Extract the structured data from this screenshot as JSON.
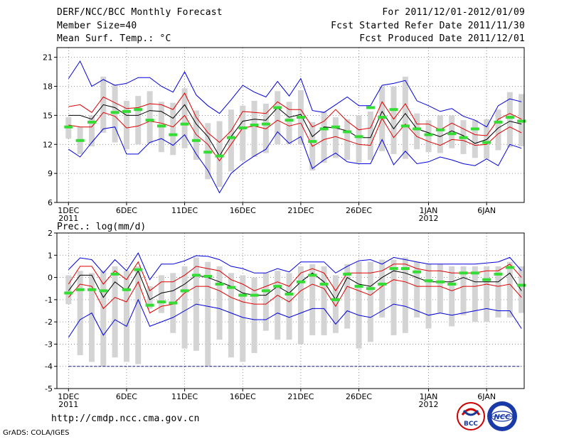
{
  "header": {
    "title": "DERF/NCC/BCC Monthly Forecast",
    "member_size": "Member Size=40",
    "temp_label": "Mean Surf. Temp.: °C",
    "forecast_for": "For 2011/12/01-2012/01/09",
    "started": "Fcst Started Refer Date 2011/11/30",
    "produced": "Fcst Produced Date 2011/12/01"
  },
  "footer": {
    "url": "http://cmdp.ncc.cma.gov.cn",
    "credit": "GrADS: COLA/IGES",
    "logo_bcc": "BCC",
    "logo_ncc": "NCC"
  },
  "colors": {
    "envelope": "#0000dd",
    "inner": "#dd0000",
    "mean": "#000000",
    "obs": "#33dd33",
    "bar": "#d4d4d4",
    "grid": "#777777"
  },
  "chart_data": [
    {
      "type": "line",
      "title": "Mean Surf. Temp.: °C",
      "ylabel": "°C",
      "ylim": [
        6,
        22
      ],
      "yticks": [
        6,
        9,
        12,
        15,
        18,
        21
      ],
      "x_ticks": [
        {
          "label": "1DEC",
          "sub": "2011",
          "day": 0
        },
        {
          "label": "6DEC",
          "sub": "",
          "day": 5
        },
        {
          "label": "11DEC",
          "sub": "",
          "day": 10
        },
        {
          "label": "16DEC",
          "sub": "",
          "day": 15
        },
        {
          "label": "21DEC",
          "sub": "",
          "day": 20
        },
        {
          "label": "26DEC",
          "sub": "",
          "day": 25
        },
        {
          "label": "1JAN",
          "sub": "2012",
          "day": 31
        },
        {
          "label": "6JAN",
          "sub": "",
          "day": 36
        }
      ],
      "days": 40,
      "series": [
        {
          "name": "max",
          "values": [
            18.8,
            20.6,
            18.0,
            18.7,
            18.1,
            18.3,
            18.9,
            18.9,
            18.0,
            17.4,
            19.5,
            17.1,
            16.0,
            15.2,
            16.6,
            18.1,
            17.4,
            16.9,
            18.5,
            17.0,
            18.8,
            15.5,
            15.3,
            16.1,
            16.9,
            16.0,
            16.0,
            18.1,
            18.3,
            18.6,
            16.5,
            16.0,
            15.4,
            15.7,
            14.9,
            14.5,
            13.8,
            16.0,
            16.7,
            16.4
          ]
        },
        {
          "name": "upper",
          "values": [
            15.9,
            16.1,
            15.3,
            16.9,
            16.3,
            15.7,
            15.8,
            16.2,
            16.1,
            15.6,
            17.3,
            14.8,
            13.2,
            12.2,
            13.4,
            15.4,
            15.3,
            15.2,
            16.4,
            15.6,
            15.6,
            13.8,
            14.4,
            15.6,
            14.4,
            13.5,
            13.7,
            16.4,
            14.6,
            16.2,
            14.1,
            14.1,
            13.5,
            14.2,
            13.6,
            13.0,
            12.9,
            14.6,
            15.2,
            14.6
          ]
        },
        {
          "name": "mean",
          "values": [
            15.0,
            15.0,
            14.6,
            16.1,
            15.8,
            15.0,
            15.0,
            15.5,
            15.4,
            14.7,
            16.1,
            14.1,
            12.8,
            10.8,
            12.8,
            14.4,
            14.6,
            14.5,
            15.8,
            14.8,
            15.1,
            12.8,
            13.8,
            13.7,
            13.4,
            12.7,
            12.7,
            15.4,
            13.6,
            15.2,
            13.6,
            13.2,
            12.8,
            13.4,
            12.9,
            12.1,
            12.5,
            13.7,
            14.4,
            14.1
          ]
        },
        {
          "name": "lower",
          "values": [
            14.0,
            13.8,
            13.8,
            15.3,
            14.9,
            13.7,
            13.9,
            14.4,
            14.2,
            13.8,
            15.0,
            13.0,
            12.0,
            10.3,
            12.0,
            13.7,
            13.9,
            13.6,
            14.5,
            13.9,
            14.2,
            11.8,
            12.5,
            12.8,
            12.4,
            12.0,
            11.9,
            14.7,
            12.7,
            14.1,
            12.8,
            12.3,
            11.9,
            12.5,
            12.4,
            11.9,
            12.0,
            13.1,
            13.8,
            13.2
          ]
        },
        {
          "name": "min",
          "values": [
            11.5,
            10.7,
            12.2,
            13.6,
            13.8,
            11.0,
            11.0,
            12.2,
            12.6,
            11.9,
            13.0,
            11.0,
            9.3,
            7.0,
            9.0,
            10.0,
            10.8,
            11.5,
            13.3,
            12.1,
            12.8,
            9.5,
            10.4,
            11.1,
            10.2,
            10.0,
            10.0,
            12.5,
            9.9,
            11.3,
            10.0,
            10.2,
            10.7,
            10.4,
            10.0,
            9.8,
            10.5,
            9.8,
            12.0,
            11.6
          ]
        }
      ],
      "obs": [
        13.8,
        12.4,
        14.3,
        null,
        15.3,
        15.4,
        15.6,
        14.5,
        13.9,
        13.0,
        14.1,
        12.4,
        11.2,
        10.8,
        12.7,
        13.7,
        14.0,
        14.1,
        15.8,
        14.5,
        14.8,
        12.3,
        13.6,
        13.8,
        13.3,
        12.8,
        15.8,
        14.8,
        15.6,
        13.9,
        13.6,
        13.0,
        13.5,
        13.1,
        12.7,
        13.6,
        12.2,
        14.3,
        14.8,
        14.4
      ],
      "bars": [
        [
          12.6,
          14.8
        ],
        [
          11.0,
          13.8
        ],
        [
          11.8,
          15.0
        ],
        [
          13.2,
          19.0
        ],
        [
          12.2,
          18.2
        ],
        [
          11.5,
          16.5
        ],
        [
          12.0,
          17.0
        ],
        [
          12.1,
          17.5
        ],
        [
          11.2,
          16.4
        ],
        [
          10.9,
          16.3
        ],
        [
          11.6,
          17.8
        ],
        [
          10.4,
          15.5
        ],
        [
          8.4,
          14.2
        ],
        [
          7.6,
          14.4
        ],
        [
          9.2,
          15.6
        ],
        [
          10.3,
          16.0
        ],
        [
          10.7,
          16.5
        ],
        [
          11.1,
          16.2
        ],
        [
          12.0,
          17.5
        ],
        [
          12.0,
          16.4
        ],
        [
          12.0,
          17.6
        ],
        [
          9.3,
          14.3
        ],
        [
          10.1,
          15.4
        ],
        [
          10.6,
          14.8
        ],
        [
          10.4,
          14.6
        ],
        [
          10.1,
          15.0
        ],
        [
          10.4,
          15.4
        ],
        [
          11.3,
          18.0
        ],
        [
          11.0,
          18.0
        ],
        [
          10.5,
          19.0
        ],
        [
          11.5,
          15.2
        ],
        [
          11.2,
          14.5
        ],
        [
          11.1,
          15.0
        ],
        [
          11.6,
          15.0
        ],
        [
          11.0,
          14.5
        ],
        [
          10.6,
          14.5
        ],
        [
          10.5,
          14.6
        ],
        [
          11.4,
          15.6
        ],
        [
          11.7,
          17.4
        ],
        [
          11.8,
          17.2
        ]
      ]
    },
    {
      "type": "line",
      "title": "Prec.: log(mm/d)",
      "ylabel": "log(mm/d)",
      "ylim": [
        -5,
        2
      ],
      "yticks": [
        -5,
        -4,
        -3,
        -2,
        -1,
        0,
        1,
        2
      ],
      "x_ticks": [
        {
          "label": "1DEC",
          "sub": "2011",
          "day": 0
        },
        {
          "label": "6DEC",
          "sub": "",
          "day": 5
        },
        {
          "label": "11DEC",
          "sub": "",
          "day": 10
        },
        {
          "label": "16DEC",
          "sub": "",
          "day": 15
        },
        {
          "label": "21DEC",
          "sub": "",
          "day": 20
        },
        {
          "label": "26DEC",
          "sub": "",
          "day": 25
        },
        {
          "label": "1JAN",
          "sub": "2012",
          "day": 31
        },
        {
          "label": "6JAN",
          "sub": "",
          "day": 36
        }
      ],
      "days": 40,
      "baseline": -4,
      "series": [
        {
          "name": "max",
          "values": [
            0.35,
            0.88,
            0.8,
            0.2,
            0.8,
            0.3,
            1.1,
            -0.1,
            0.6,
            0.6,
            0.75,
            0.98,
            0.95,
            0.8,
            0.5,
            0.4,
            0.2,
            0.2,
            0.4,
            0.25,
            0.7,
            0.7,
            0.7,
            0.2,
            0.5,
            0.75,
            0.8,
            0.6,
            0.9,
            0.8,
            0.7,
            0.6,
            0.6,
            0.6,
            0.6,
            0.6,
            0.65,
            0.7,
            0.9,
            0.3
          ]
        },
        {
          "name": "upper",
          "values": [
            -0.3,
            0.5,
            0.5,
            -0.3,
            0.3,
            -0.1,
            0.7,
            -0.6,
            -0.2,
            -0.2,
            0.1,
            0.5,
            0.4,
            0.3,
            -0.1,
            -0.3,
            -0.6,
            -0.4,
            -0.2,
            -0.4,
            0.2,
            0.4,
            0.2,
            -0.6,
            0.2,
            0.2,
            0.2,
            0.3,
            0.6,
            0.6,
            0.4,
            0.3,
            0.3,
            0.2,
            0.2,
            0.2,
            0.3,
            0.3,
            0.6,
            0.0
          ]
        },
        {
          "name": "mean",
          "values": [
            -0.6,
            0.1,
            0.1,
            -0.9,
            -0.2,
            -0.6,
            0.3,
            -1.0,
            -0.7,
            -0.6,
            -0.3,
            0.1,
            0.0,
            -0.2,
            -0.4,
            -0.7,
            -0.8,
            -0.8,
            -0.4,
            -0.7,
            -0.2,
            0.2,
            -0.2,
            -1.0,
            0.0,
            -0.3,
            -0.4,
            0.0,
            0.3,
            0.2,
            0.0,
            -0.2,
            -0.2,
            -0.2,
            0.0,
            -0.2,
            -0.2,
            -0.2,
            0.2,
            -0.6
          ]
        },
        {
          "name": "lower",
          "values": [
            -0.9,
            -0.3,
            -0.4,
            -1.4,
            -0.9,
            -1.1,
            -0.2,
            -1.6,
            -1.3,
            -1.2,
            -0.7,
            -0.4,
            -0.4,
            -0.6,
            -0.9,
            -1.1,
            -1.2,
            -1.2,
            -0.8,
            -1.1,
            -0.6,
            -0.3,
            -0.5,
            -1.3,
            -0.4,
            -0.6,
            -0.8,
            -0.4,
            -0.1,
            -0.2,
            -0.4,
            -0.4,
            -0.4,
            -0.6,
            -0.4,
            -0.4,
            -0.3,
            -0.4,
            -0.3,
            -0.9
          ]
        },
        {
          "name": "min",
          "values": [
            -2.7,
            -1.9,
            -1.6,
            -2.6,
            -1.9,
            -2.2,
            -1.0,
            -2.2,
            -2.0,
            -1.8,
            -1.5,
            -1.2,
            -1.3,
            -1.4,
            -1.6,
            -1.8,
            -1.9,
            -1.9,
            -1.6,
            -1.8,
            -1.6,
            -1.4,
            -1.4,
            -2.1,
            -1.5,
            -1.7,
            -1.8,
            -1.5,
            -1.2,
            -1.3,
            -1.5,
            -1.7,
            -1.6,
            -1.7,
            -1.6,
            -1.5,
            -1.4,
            -1.5,
            -1.5,
            -2.3
          ]
        },
        {
          "name": "baseline",
          "values": [
            -4,
            -4,
            -4,
            -4,
            -4,
            -4,
            -4,
            -4,
            -4,
            -4,
            -4,
            -4,
            -4,
            -4,
            -4,
            -4,
            -4,
            -4,
            -4,
            -4,
            -4,
            -4,
            -4,
            -4,
            -4,
            -4,
            -4,
            -4,
            -4,
            -4,
            -4,
            -4,
            -4,
            -4,
            -4,
            -4,
            -4,
            -4,
            -4,
            -4
          ]
        }
      ],
      "obs": [
        -0.7,
        -0.55,
        -0.55,
        -0.6,
        0.15,
        -0.55,
        0.35,
        -1.25,
        -1.1,
        -1.15,
        -0.6,
        0.1,
        0.05,
        -0.3,
        -0.45,
        -0.8,
        -0.8,
        -0.6,
        -0.4,
        -0.75,
        -0.2,
        0.1,
        -0.3,
        -1.0,
        0.15,
        -0.4,
        -0.5,
        -0.3,
        0.4,
        0.4,
        0.25,
        -0.15,
        -0.2,
        -0.3,
        0.2,
        0.2,
        -0.1,
        0.15,
        0.45,
        -0.35
      ],
      "bars": [
        [
          -1.2,
          0.1
        ],
        [
          -3.5,
          0.3
        ],
        [
          -3.8,
          0.2
        ],
        [
          -4.0,
          0.3
        ],
        [
          -3.6,
          0.5
        ],
        [
          -3.8,
          0.3
        ],
        [
          -3.9,
          0.5
        ],
        [
          -1.4,
          -0.4
        ],
        [
          -1.6,
          0.1
        ],
        [
          -2.5,
          0.2
        ],
        [
          -3.2,
          0.5
        ],
        [
          -3.3,
          0.9
        ],
        [
          -4.0,
          0.7
        ],
        [
          -2.8,
          0.5
        ],
        [
          -3.6,
          0.2
        ],
        [
          -3.8,
          0.1
        ],
        [
          -3.4,
          0.0
        ],
        [
          -2.4,
          0.2
        ],
        [
          -2.8,
          0.3
        ],
        [
          -2.8,
          0.2
        ],
        [
          -3.0,
          0.5
        ],
        [
          -2.6,
          0.6
        ],
        [
          -2.6,
          0.5
        ],
        [
          -2.5,
          0.1
        ],
        [
          -2.3,
          0.6
        ],
        [
          -3.2,
          0.7
        ],
        [
          -2.9,
          0.7
        ],
        [
          -1.8,
          0.8
        ],
        [
          -2.6,
          0.8
        ],
        [
          -2.5,
          0.9
        ],
        [
          -1.8,
          0.7
        ],
        [
          -2.3,
          0.6
        ],
        [
          -1.6,
          0.6
        ],
        [
          -2.2,
          0.5
        ],
        [
          -1.7,
          0.5
        ],
        [
          -2.0,
          0.5
        ],
        [
          -2.0,
          0.5
        ],
        [
          -1.8,
          0.5
        ],
        [
          -1.8,
          0.7
        ],
        [
          -1.6,
          0.5
        ]
      ]
    }
  ]
}
